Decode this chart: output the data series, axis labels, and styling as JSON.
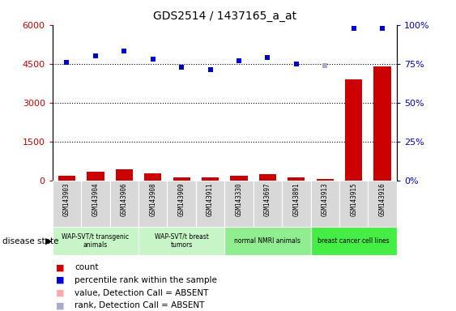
{
  "title": "GDS2514 / 1437165_a_at",
  "samples": [
    "GSM143903",
    "GSM143904",
    "GSM143906",
    "GSM143908",
    "GSM143909",
    "GSM143911",
    "GSM143330",
    "GSM143697",
    "GSM143891",
    "GSM143913",
    "GSM143915",
    "GSM143916"
  ],
  "count_values": [
    170,
    320,
    430,
    270,
    130,
    110,
    170,
    230,
    130,
    50,
    3900,
    4400
  ],
  "count_absent": [
    false,
    false,
    false,
    false,
    false,
    false,
    false,
    false,
    false,
    false,
    false,
    false
  ],
  "percentile_values": [
    76,
    80,
    83,
    78,
    73,
    71,
    77,
    79,
    75,
    74,
    98,
    98
  ],
  "percentile_absent": [
    false,
    false,
    false,
    false,
    false,
    false,
    false,
    false,
    false,
    true,
    false,
    false
  ],
  "ylim_left": [
    0,
    6000
  ],
  "ylim_right": [
    0,
    100
  ],
  "yticks_left": [
    0,
    1500,
    3000,
    4500,
    6000
  ],
  "ytick_labels_left": [
    "0",
    "1500",
    "3000",
    "4500",
    "6000"
  ],
  "yticks_right": [
    0,
    25,
    50,
    75,
    100
  ],
  "ytick_labels_right": [
    "0%",
    "25%",
    "50%",
    "75%",
    "100%"
  ],
  "group_labels": [
    "WAP-SVT/t transgenic\nanimals",
    "WAP-SVT/t breast\ntumors",
    "normal NMRI animals",
    "breast cancer cell lines"
  ],
  "group_ranges": [
    [
      0,
      3
    ],
    [
      3,
      6
    ],
    [
      6,
      9
    ],
    [
      9,
      12
    ]
  ],
  "group_colors": [
    "#c8f5c8",
    "#c8f5c8",
    "#90ee90",
    "#44ee44"
  ],
  "bar_color": "#cc0000",
  "bar_absent_color": "#ffaaaa",
  "dot_color": "#0000cc",
  "dot_absent_color": "#aaaacc",
  "left_axis_color": "#cc0000",
  "right_axis_color": "#0000cc",
  "dotted_line_color": "#000000",
  "grid_dotted_levels": [
    1500,
    3000,
    4500
  ],
  "sample_box_color": "#d8d8d8",
  "disease_state_label": "disease state"
}
